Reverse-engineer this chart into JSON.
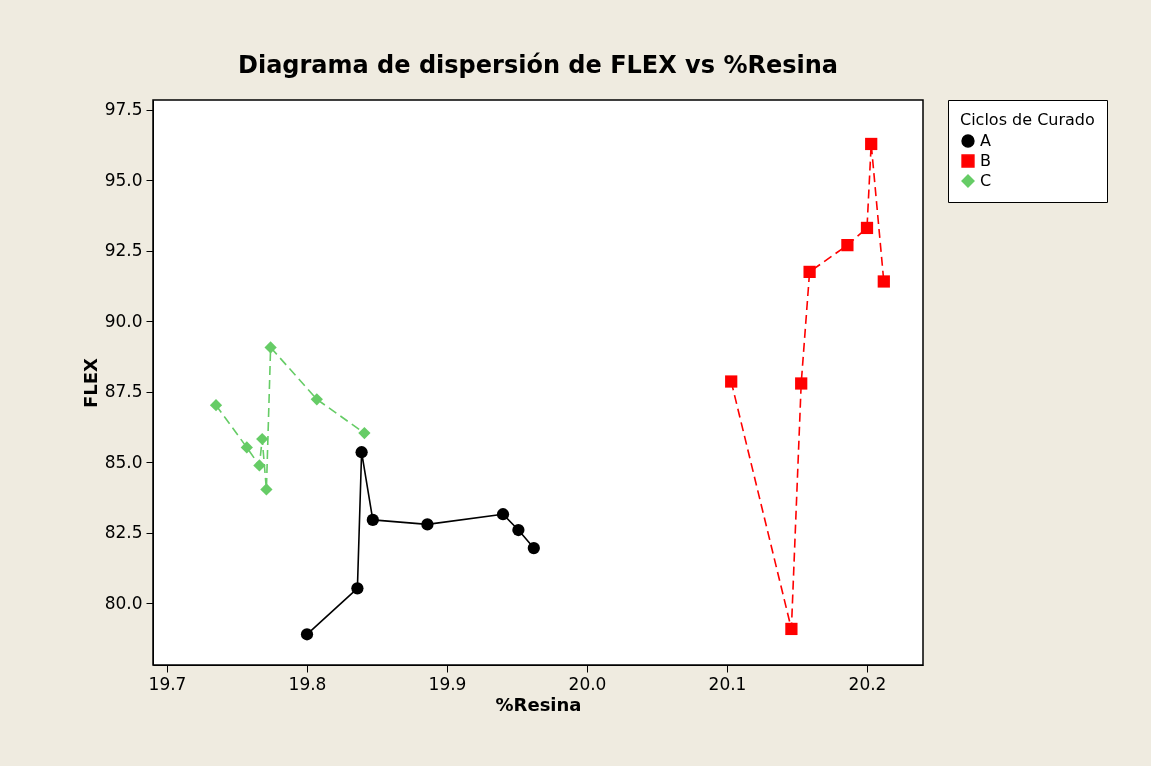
{
  "chart_data": {
    "type": "line",
    "title": "Diagrama de dispersión de FLEX vs %Resina",
    "xlabel": "%Resina",
    "ylabel": "FLEX",
    "legend_title": "Ciclos de Curado",
    "legend": "right",
    "xlim": [
      19.69,
      20.24
    ],
    "xticks": [
      19.7,
      19.8,
      19.9,
      {
        "value": 20,
        "label": "20.0"
      },
      20.1,
      20.2
    ],
    "ylim": [
      77.8,
      97.85
    ],
    "yticks": [
      {
        "value": 80,
        "label": "80.0"
      },
      82.5,
      {
        "value": 85,
        "label": "85.0"
      },
      87.5,
      {
        "value": 90,
        "label": "90.0"
      },
      92.5,
      {
        "value": 95,
        "label": "95.0"
      },
      97.5
    ],
    "grid": false,
    "series": [
      {
        "name": "A",
        "color": "#000000",
        "marker": "circle",
        "line_style": "solid",
        "x": [
          19.8,
          19.836,
          19.839,
          19.847,
          19.886,
          19.94,
          19.951,
          19.962
        ],
        "values": [
          78.89,
          80.52,
          85.35,
          82.95,
          82.79,
          83.15,
          82.59,
          81.95
        ]
      },
      {
        "name": "B",
        "color": "#ff0000",
        "marker": "square",
        "line_style": "dashed",
        "x": [
          20.103,
          20.146,
          20.153,
          20.159,
          20.186,
          20.2,
          20.203,
          20.212
        ],
        "values": [
          87.86,
          79.08,
          87.79,
          91.75,
          92.7,
          93.31,
          96.29,
          91.41
        ]
      },
      {
        "name": "C",
        "color": "#66cc66",
        "marker": "diamond",
        "line_style": "dashed",
        "x": [
          19.735,
          19.757,
          19.766,
          19.768,
          19.771,
          19.774,
          19.807,
          19.841
        ],
        "values": [
          87.02,
          85.52,
          84.88,
          85.82,
          84.03,
          89.07,
          87.23,
          86.03
        ]
      }
    ]
  }
}
